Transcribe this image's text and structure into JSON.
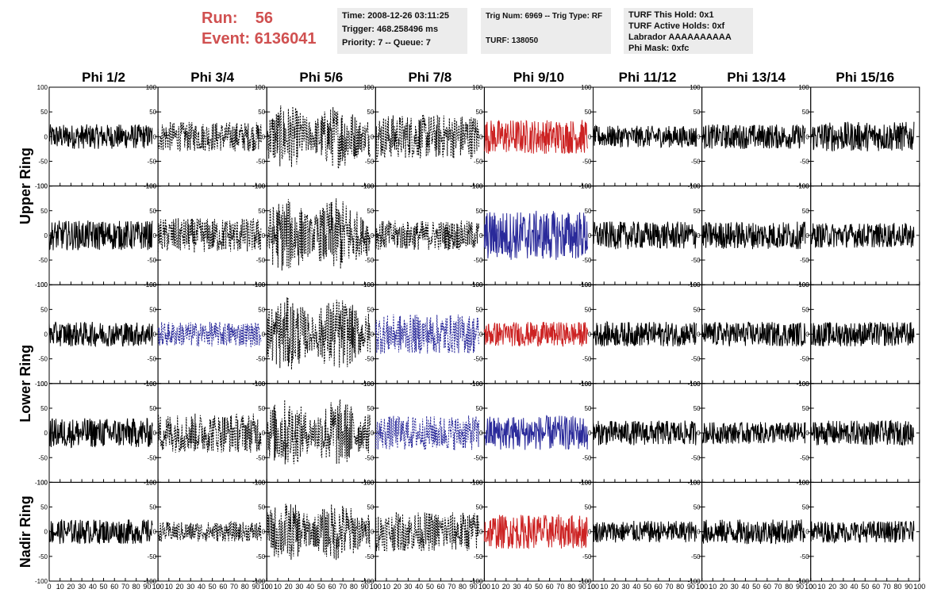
{
  "header": {
    "run_label": "Run:",
    "run_value": "56",
    "event_label": "Event:",
    "event_value": "6136041"
  },
  "info_box_1": {
    "time": "Time: 2008-12-26 03:11:25",
    "trigger": "Trigger: 468.258496 ms",
    "priority": "Priority: 7 -- Queue: 7"
  },
  "info_box_2": {
    "trig": "Trig Num: 6969 -- Trig Type: RF",
    "turf": "TURF: 138050"
  },
  "info_box_3": {
    "this_hold": "TURF This Hold: 0x1",
    "active_holds": "TURF Active Holds: 0xf",
    "labrador": "Labrador AAAAAAAAAA",
    "phi_mask": "Phi Mask: 0xfc"
  },
  "chart_data": {
    "type": "line",
    "description": "Grid of waveform panels: 5 rings x 8 phi sector pairs",
    "columns": [
      "Phi 1/2",
      "Phi 3/4",
      "Phi 5/6",
      "Phi 7/8",
      "Phi 9/10",
      "Phi 11/12",
      "Phi 13/14",
      "Phi 15/16"
    ],
    "rows": [
      "Upper Ring",
      "Upper Ring",
      "Lower Ring",
      "Lower Ring",
      "Nadir Ring"
    ],
    "row_labels": [
      "Upper Ring",
      "Lower Ring",
      "Nadir Ring"
    ],
    "xlim": [
      0,
      100
    ],
    "ylim": [
      -100,
      100
    ],
    "x_tick_labels": [
      "0",
      "10",
      "20",
      "30",
      "40",
      "50",
      "60",
      "70",
      "80",
      "90",
      "100"
    ],
    "y_tick_labels": [
      "100",
      "50",
      "0",
      "-50",
      "-100"
    ],
    "colors": {
      "default": "#000000",
      "red": "#cc2222",
      "blue": "#2a2a9a"
    },
    "panels": [
      [
        "solid",
        "dashed",
        "dashed-large",
        "dashed",
        "red",
        "solid",
        "solid",
        "solid"
      ],
      [
        "solid",
        "dashed",
        "dashed-large",
        "dashed",
        "blue",
        "solid",
        "solid",
        "solid"
      ],
      [
        "solid",
        "blue-dashed",
        "dashed-large",
        "blue-dashed",
        "red",
        "solid",
        "solid",
        "solid"
      ],
      [
        "solid",
        "dashed",
        "dashed-large",
        "blue-dashed",
        "blue",
        "solid",
        "solid",
        "solid"
      ],
      [
        "solid",
        "dashed",
        "dashed-large",
        "dashed",
        "red",
        "solid",
        "solid",
        "solid"
      ]
    ],
    "amplitudes": [
      [
        25,
        30,
        65,
        45,
        35,
        22,
        25,
        30
      ],
      [
        30,
        35,
        75,
        30,
        50,
        28,
        28,
        25
      ],
      [
        25,
        25,
        75,
        40,
        25,
        25,
        25,
        25
      ],
      [
        30,
        40,
        70,
        35,
        35,
        25,
        22,
        25
      ],
      [
        25,
        20,
        60,
        40,
        35,
        22,
        25,
        22
      ]
    ]
  }
}
